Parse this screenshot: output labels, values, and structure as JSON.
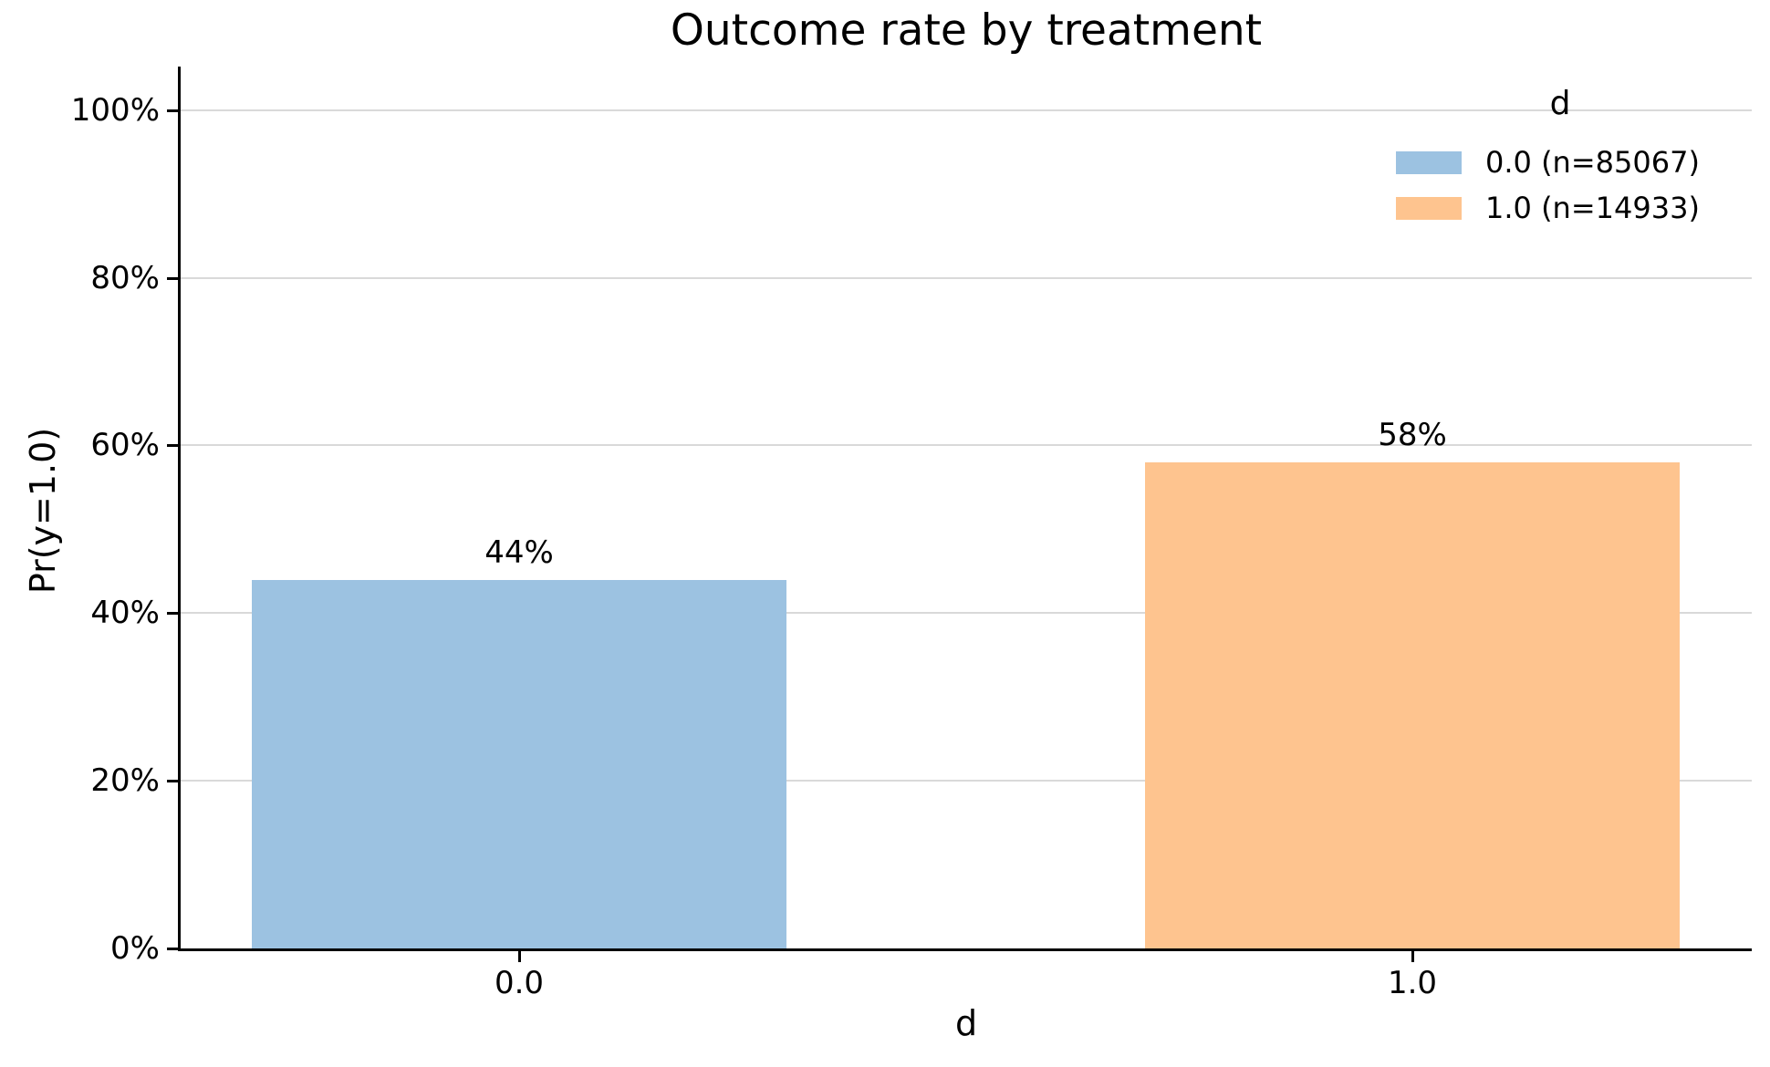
{
  "chart_data": {
    "type": "bar",
    "title": "Outcome rate by treatment",
    "xlabel": "d",
    "ylabel": "Pr(y=1.0)",
    "categories": [
      "0.0",
      "1.0"
    ],
    "values": [
      0.44,
      0.58
    ],
    "bar_labels": [
      "44%",
      "58%"
    ],
    "bar_colors": [
      "#9cc2e1",
      "#fec48f"
    ],
    "y_ticks": [
      {
        "label": "0%",
        "value": 0.0
      },
      {
        "label": "20%",
        "value": 0.2
      },
      {
        "label": "40%",
        "value": 0.4
      },
      {
        "label": "60%",
        "value": 0.6
      },
      {
        "label": "80%",
        "value": 0.8
      },
      {
        "label": "100%",
        "value": 1.0
      }
    ],
    "ylim": [
      0,
      1.052
    ],
    "grid": "horizontal",
    "legend": {
      "title": "d",
      "position": "upper right",
      "entries": [
        {
          "label": "0.0 (n=85067)",
          "color": "#9cc2e1"
        },
        {
          "label": "1.0 (n=14933)",
          "color": "#fec48f"
        }
      ]
    }
  }
}
